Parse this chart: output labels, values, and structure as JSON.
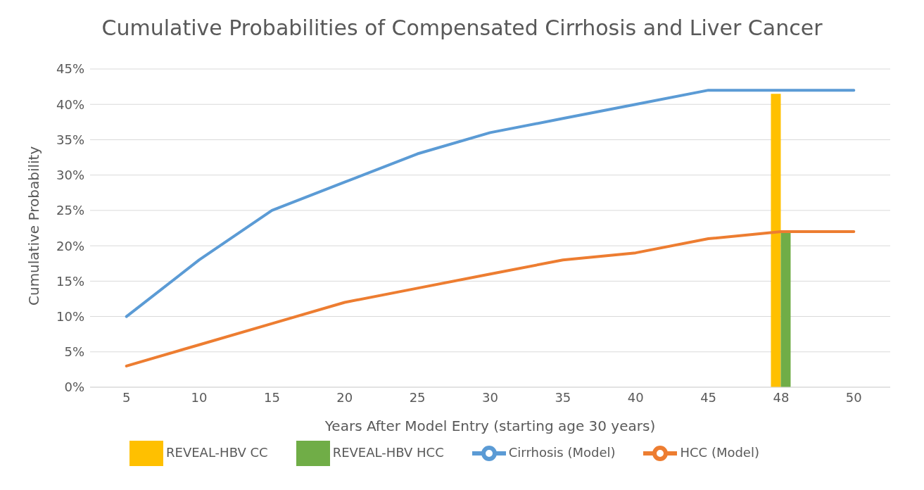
{
  "chart_data": {
    "type": "line",
    "title": "Cumulative Probabilities of Compensated Cirrhosis and Liver Cancer",
    "xlabel": "Years After Model Entry (starting age 30 years)",
    "ylabel": "Cumulative Probability",
    "categories": [
      "5",
      "10",
      "15",
      "20",
      "25",
      "30",
      "35",
      "40",
      "45",
      "48",
      "50"
    ],
    "series": [
      {
        "name": "REVEAL-HBV CC",
        "type": "bar",
        "color": "#ffc000",
        "values": [
          null,
          null,
          null,
          null,
          null,
          null,
          null,
          null,
          null,
          41.5,
          null
        ]
      },
      {
        "name": "REVEAL-HBV HCC",
        "type": "bar",
        "color": "#70ad47",
        "values": [
          null,
          null,
          null,
          null,
          null,
          null,
          null,
          null,
          null,
          22,
          null
        ]
      },
      {
        "name": "Cirrhosis (Model)",
        "color": "#5b9bd5",
        "values": [
          10,
          18,
          25,
          29,
          33,
          36,
          38,
          40,
          42,
          42,
          42
        ]
      },
      {
        "name": "HCC (Model)",
        "color": "#ed7d31",
        "values": [
          3,
          6,
          9,
          12,
          14,
          16,
          18,
          19,
          21,
          22,
          22
        ]
      }
    ],
    "ylim": [
      0,
      45
    ],
    "yticks": [
      {
        "value": 0,
        "label": "0%"
      },
      {
        "value": 5,
        "label": "5%"
      },
      {
        "value": 10,
        "label": "10%"
      },
      {
        "value": 15,
        "label": "15%"
      },
      {
        "value": 20,
        "label": "20%"
      },
      {
        "value": 25,
        "label": "25%"
      },
      {
        "value": 30,
        "label": "30%"
      },
      {
        "value": 35,
        "label": "35%"
      },
      {
        "value": 40,
        "label": "40%"
      },
      {
        "value": 45,
        "label": "45%"
      }
    ],
    "grid": "y",
    "legend": "bottom",
    "marker": "none",
    "line_style": "solid"
  }
}
